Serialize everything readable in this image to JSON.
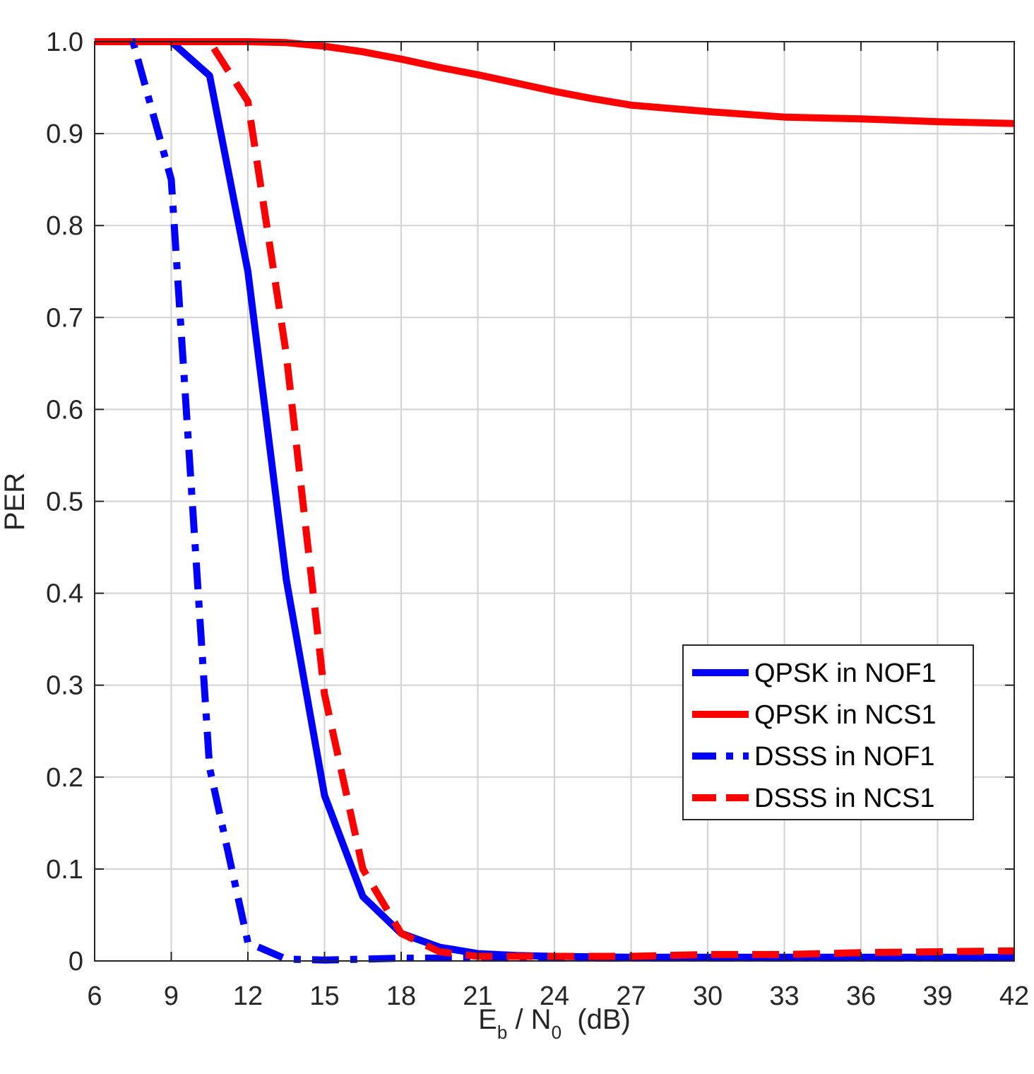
{
  "chart_data": {
    "type": "line",
    "xlabel": {
      "main": "E",
      "sub": "b",
      "mid": " / N",
      "sub2": "0",
      "tail": "  (dB)"
    },
    "ylabel": "PER",
    "xlim": [
      6,
      42
    ],
    "ylim": [
      0,
      1
    ],
    "xticks": [
      "6",
      "9",
      "12",
      "15",
      "18",
      "21",
      "24",
      "27",
      "30",
      "33",
      "36",
      "39",
      "42"
    ],
    "yticks": [
      "0",
      "0.1",
      "0.2",
      "0.3",
      "0.4",
      "0.5",
      "0.6",
      "0.7",
      "0.8",
      "0.9",
      "1.0"
    ],
    "grid": true,
    "legend_position": "lower-right",
    "series": [
      {
        "name": "QPSK in NOF1",
        "color": "#0000FF",
        "style": "solid",
        "x": [
          6,
          7.5,
          9,
          10.5,
          12,
          13.5,
          15,
          16.5,
          18,
          19.5,
          21,
          22.5,
          24,
          27,
          30,
          33,
          36,
          39,
          42
        ],
        "y": [
          1.0,
          1.0,
          1.0,
          0.963,
          0.75,
          0.415,
          0.18,
          0.07,
          0.03,
          0.015,
          0.008,
          0.006,
          0.005,
          0.004,
          0.004,
          0.004,
          0.004,
          0.004,
          0.004
        ]
      },
      {
        "name": "QPSK in NCS1",
        "color": "#FF0000",
        "style": "solid",
        "x": [
          6,
          7.5,
          9,
          10.5,
          12,
          13.5,
          15,
          16.5,
          18,
          19.5,
          21,
          22.5,
          24,
          25.5,
          27,
          30,
          33,
          36,
          39,
          42
        ],
        "y": [
          1.0,
          1.0,
          1.0,
          1.0,
          1.0,
          0.999,
          0.995,
          0.989,
          0.981,
          0.972,
          0.964,
          0.955,
          0.946,
          0.938,
          0.931,
          0.924,
          0.918,
          0.916,
          0.913,
          0.911
        ]
      },
      {
        "name": "DSSS in NOF1",
        "color": "#0000FF",
        "style": "dashdot",
        "x": [
          6,
          7.5,
          9,
          10.5,
          12,
          13.5,
          15,
          16.5,
          18,
          19.5,
          21,
          24,
          27,
          30,
          33,
          36,
          39,
          42
        ],
        "y": [
          1.0,
          1.0,
          0.85,
          0.21,
          0.02,
          0.002,
          0.001,
          0.002,
          0.003,
          0.003,
          0.003,
          0.003,
          0.003,
          0.003,
          0.003,
          0.003,
          0.003,
          0.003
        ]
      },
      {
        "name": "DSSS in NCS1",
        "color": "#FF0000",
        "style": "dashed",
        "x": [
          6,
          7.5,
          9,
          10.5,
          12,
          13.5,
          15,
          16.5,
          18,
          19.5,
          21,
          24,
          27,
          30,
          33,
          36,
          39,
          42
        ],
        "y": [
          1.0,
          1.0,
          1.0,
          1.0,
          0.935,
          0.66,
          0.29,
          0.1,
          0.03,
          0.01,
          0.005,
          0.005,
          0.005,
          0.007,
          0.007,
          0.009,
          0.01,
          0.011
        ]
      }
    ]
  }
}
